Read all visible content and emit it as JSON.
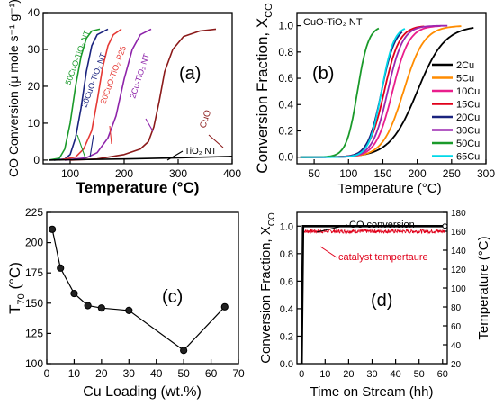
{
  "chart_data": [
    {
      "id": "a",
      "type": "line",
      "panel_label": "(a)",
      "xlabel": "Temperature (",
      "xlabel_unit": "°C)",
      "ylabel": "CO Conversion (μ mole s⁻¹ g⁻¹)",
      "xlim": [
        50,
        400
      ],
      "ylim": [
        -1,
        40
      ],
      "xticks": [
        100,
        200,
        300,
        400
      ],
      "yticks": [
        0,
        10,
        20,
        30,
        40
      ],
      "series": [
        {
          "name": "50CuO-TiO₂ NT",
          "color": "#1a9a2a",
          "x": [
            60,
            80,
            90,
            100,
            110,
            120,
            130,
            140,
            155
          ],
          "y": [
            0,
            0.5,
            3,
            10,
            20,
            28,
            33,
            35,
            35.5
          ]
        },
        {
          "name": "20CuO-TiO₂ NT",
          "color": "#1a237e",
          "x": [
            70,
            90,
            100,
            110,
            120,
            130,
            140,
            150,
            170
          ],
          "y": [
            0,
            0.3,
            1.5,
            6,
            14,
            24,
            31,
            34,
            35.5
          ]
        },
        {
          "name": "20CuO-TiO₂ P25",
          "color": "#e53935",
          "x": [
            80,
            110,
            125,
            140,
            150,
            160,
            170,
            180,
            195
          ],
          "y": [
            0,
            0.8,
            3,
            8,
            16,
            25,
            31,
            34,
            35.5
          ]
        },
        {
          "name": "2Cu-TiO₂ NT",
          "color": "#8e24aa",
          "x": [
            90,
            130,
            150,
            170,
            185,
            200,
            215,
            230,
            250
          ],
          "y": [
            0,
            0.6,
            2,
            6,
            12,
            22,
            30,
            34,
            35.5
          ]
        },
        {
          "name": "CuO",
          "color": "#8b1a1a",
          "x": [
            100,
            150,
            200,
            230,
            245,
            255,
            265,
            275,
            290,
            310,
            340,
            370
          ],
          "y": [
            0,
            0.3,
            1.5,
            3,
            5,
            9,
            16,
            24,
            30,
            33.5,
            35,
            35.5
          ]
        },
        {
          "name": "TiO₂ NT",
          "color": "#000000",
          "x": [
            60,
            100,
            200,
            300,
            400
          ],
          "y": [
            0,
            0.1,
            0.3,
            0.6,
            1.0
          ]
        }
      ]
    },
    {
      "id": "b",
      "type": "line",
      "panel_label": "(b)",
      "inner_title": "CuO-TiO₂ NT",
      "xlabel": "Temperature (",
      "xlabel_unit": "°C)",
      "ylabel": "Conversion Fraction, X",
      "ylabel_sub": "CO",
      "xlim": [
        25,
        300
      ],
      "ylim": [
        -0.05,
        1.1
      ],
      "xticks": [
        50,
        100,
        150,
        200,
        250,
        300
      ],
      "yticks": [
        0.0,
        0.2,
        0.4,
        0.6,
        0.8,
        1.0
      ],
      "legend": "right",
      "series": [
        {
          "name": "2Cu",
          "color": "#000000",
          "t50": 200,
          "k": 20,
          "end": 282
        },
        {
          "name": "5Cu",
          "color": "#ff8c00",
          "t50": 180,
          "k": 15,
          "end": 265
        },
        {
          "name": "10Cu",
          "color": "#e91e8c",
          "t50": 164,
          "k": 12,
          "end": 235
        },
        {
          "name": "15Cu",
          "color": "#e0001a",
          "t50": 152,
          "k": 11,
          "end": 210
        },
        {
          "name": "20Cu",
          "color": "#1a237e",
          "t50": 148,
          "k": 10,
          "end": 178
        },
        {
          "name": "30Cu",
          "color": "#9c27b0",
          "t50": 157,
          "k": 11,
          "end": 245
        },
        {
          "name": "50Cu",
          "color": "#1a9a2a",
          "t50": 113,
          "k": 8,
          "end": 145
        },
        {
          "name": "65Cu",
          "color": "#00d8e8",
          "t50": 148,
          "k": 9,
          "end": 183
        }
      ]
    },
    {
      "id": "c",
      "type": "scatter",
      "panel_label": "(c)",
      "xlabel": "Cu Loading  (wt.%)",
      "ylabel": "T",
      "ylabel_sub": "70",
      "ylabel_unit": " (°C)",
      "xlim": [
        0,
        70
      ],
      "ylim": [
        100,
        225
      ],
      "xticks": [
        0,
        10,
        20,
        30,
        40,
        50,
        60,
        70
      ],
      "yticks": [
        100,
        125,
        150,
        175,
        200,
        225
      ],
      "x": [
        2,
        5,
        10,
        15,
        20,
        30,
        50,
        65
      ],
      "y": [
        211,
        179,
        158,
        148,
        146,
        144,
        111,
        147
      ]
    },
    {
      "id": "d",
      "type": "line",
      "panel_label": "(d)",
      "xlabel": "Time on Stream  (hh)",
      "ylabel": "Conversion Fraction, X",
      "ylabel_sub": "CO",
      "y2label": "Temperature (°C)",
      "xlim": [
        -2,
        62
      ],
      "ylim": [
        0,
        1.1
      ],
      "y2lim": [
        20,
        180
      ],
      "xticks": [
        0,
        10,
        20,
        30,
        40,
        50,
        60
      ],
      "yticks": [
        0.0,
        0.2,
        0.4,
        0.6,
        0.8,
        1.0
      ],
      "y2ticks": [
        20,
        40,
        60,
        80,
        100,
        120,
        140,
        160,
        180
      ],
      "series": [
        {
          "name": "CO conversion",
          "color": "#000000",
          "ramp_end": 0.6,
          "plateau": 1.0,
          "end": 61
        },
        {
          "name": "catalyst tempertaure",
          "color": "#e0001a",
          "axis": "right",
          "ramp_end": 0.6,
          "plateau": 160,
          "noise": 2,
          "end": 61
        }
      ]
    }
  ]
}
